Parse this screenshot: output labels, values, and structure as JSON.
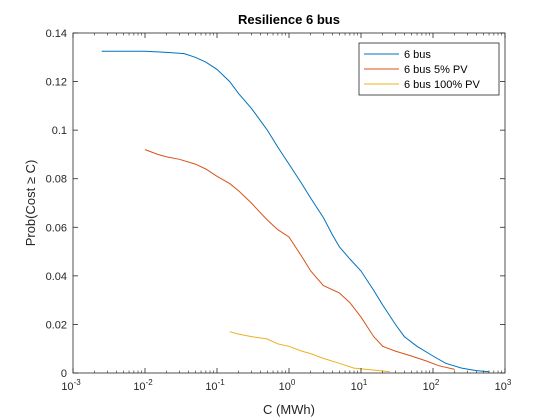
{
  "chart_data": {
    "type": "line",
    "title": "Resilience 6 bus",
    "xlabel": "C (MWh)",
    "ylabel": "Prob(Cost ≥ C)",
    "xscale": "log",
    "xlim": [
      0.001,
      1000
    ],
    "ylim": [
      0,
      0.14
    ],
    "x_ticks": [
      {
        "value": 0.001,
        "base": "10",
        "exp": "-3"
      },
      {
        "value": 0.01,
        "base": "10",
        "exp": "-2"
      },
      {
        "value": 0.1,
        "base": "10",
        "exp": "-1"
      },
      {
        "value": 1,
        "base": "10",
        "exp": "0"
      },
      {
        "value": 10,
        "base": "10",
        "exp": "1"
      },
      {
        "value": 100,
        "base": "10",
        "exp": "2"
      },
      {
        "value": 1000,
        "base": "10",
        "exp": "3"
      }
    ],
    "y_ticks": [
      {
        "value": 0,
        "label": "0"
      },
      {
        "value": 0.02,
        "label": "0.02"
      },
      {
        "value": 0.04,
        "label": "0.04"
      },
      {
        "value": 0.06,
        "label": "0.06"
      },
      {
        "value": 0.08,
        "label": "0.08"
      },
      {
        "value": 0.1,
        "label": "0.1"
      },
      {
        "value": 0.12,
        "label": "0.12"
      },
      {
        "value": 0.14,
        "label": "0.14"
      }
    ],
    "grid": false,
    "legend_position": "top-right",
    "series": [
      {
        "name": "6 bus",
        "color": "#0072BD",
        "points": [
          [
            0.0025,
            0.1325
          ],
          [
            0.005,
            0.1325
          ],
          [
            0.01,
            0.1325
          ],
          [
            0.02,
            0.132
          ],
          [
            0.035,
            0.1315
          ],
          [
            0.05,
            0.13
          ],
          [
            0.07,
            0.128
          ],
          [
            0.1,
            0.125
          ],
          [
            0.15,
            0.12
          ],
          [
            0.2,
            0.115
          ],
          [
            0.3,
            0.109
          ],
          [
            0.5,
            0.1
          ],
          [
            0.7,
            0.093
          ],
          [
            1.0,
            0.086
          ],
          [
            1.5,
            0.078
          ],
          [
            2.0,
            0.072
          ],
          [
            3.0,
            0.064
          ],
          [
            4.0,
            0.057
          ],
          [
            5.0,
            0.052
          ],
          [
            7.0,
            0.047
          ],
          [
            10.0,
            0.042
          ],
          [
            15.0,
            0.034
          ],
          [
            20.0,
            0.028
          ],
          [
            30.0,
            0.02
          ],
          [
            40.0,
            0.015
          ],
          [
            60.0,
            0.011
          ],
          [
            100.0,
            0.007
          ],
          [
            150.0,
            0.004
          ],
          [
            250.0,
            0.002
          ],
          [
            400.0,
            0.001
          ],
          [
            600.0,
            0.0005
          ]
        ]
      },
      {
        "name": "6 bus 5% PV",
        "color": "#D95319",
        "points": [
          [
            0.01,
            0.092
          ],
          [
            0.015,
            0.09
          ],
          [
            0.02,
            0.089
          ],
          [
            0.03,
            0.088
          ],
          [
            0.05,
            0.086
          ],
          [
            0.07,
            0.084
          ],
          [
            0.1,
            0.081
          ],
          [
            0.15,
            0.078
          ],
          [
            0.2,
            0.075
          ],
          [
            0.3,
            0.07
          ],
          [
            0.4,
            0.066
          ],
          [
            0.5,
            0.063
          ],
          [
            0.7,
            0.059
          ],
          [
            1.0,
            0.056
          ],
          [
            1.5,
            0.048
          ],
          [
            2.0,
            0.042
          ],
          [
            3.0,
            0.036
          ],
          [
            5.0,
            0.033
          ],
          [
            7.0,
            0.029
          ],
          [
            10.0,
            0.023
          ],
          [
            15.0,
            0.015
          ],
          [
            20.0,
            0.011
          ],
          [
            30.0,
            0.009
          ],
          [
            50.0,
            0.007
          ],
          [
            80.0,
            0.005
          ],
          [
            120.0,
            0.003
          ],
          [
            200.0,
            0.0015
          ]
        ]
      },
      {
        "name": "6 bus 100% PV",
        "color": "#EDB120",
        "points": [
          [
            0.15,
            0.017
          ],
          [
            0.2,
            0.016
          ],
          [
            0.3,
            0.015
          ],
          [
            0.5,
            0.014
          ],
          [
            0.7,
            0.012
          ],
          [
            1.0,
            0.011
          ],
          [
            1.5,
            0.009
          ],
          [
            2.0,
            0.008
          ],
          [
            3.0,
            0.006
          ],
          [
            5.0,
            0.004
          ],
          [
            8.0,
            0.002
          ],
          [
            12.0,
            0.0015
          ],
          [
            18.0,
            0.001
          ],
          [
            25.0,
            0.0005
          ]
        ]
      }
    ]
  }
}
